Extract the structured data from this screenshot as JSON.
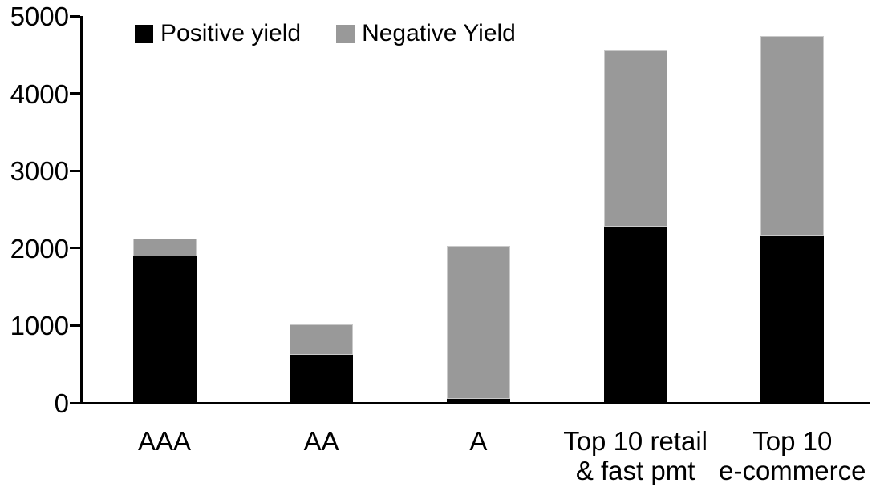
{
  "chart_data": {
    "type": "bar",
    "stacked": true,
    "title": "",
    "categories": [
      "AAA",
      "AA",
      "A",
      "Top 10 retail & fast pmt",
      "Top 10 e-commerce"
    ],
    "category_label_lines": [
      [
        "AAA"
      ],
      [
        "AA"
      ],
      [
        "A"
      ],
      [
        "Top 10 retail",
        "& fast pmt"
      ],
      [
        "Top 10",
        "e-commerce"
      ]
    ],
    "series": [
      {
        "name": "Positive yield",
        "color": "#000000",
        "values": [
          1890,
          620,
          50,
          2280,
          2150
        ]
      },
      {
        "name": "Negative Yield",
        "color": "#999999",
        "values": [
          230,
          390,
          1980,
          2270,
          2590
        ]
      }
    ],
    "totals": [
      2120,
      1010,
      2030,
      4550,
      4740
    ],
    "ylim": [
      0,
      5000
    ],
    "yticks": [
      0,
      1000,
      2000,
      3000,
      4000,
      5000
    ],
    "xlabel": "",
    "ylabel": "",
    "grid": false,
    "legend_position": "top"
  },
  "colors": {
    "axis": "#000000",
    "background": "#ffffff",
    "positive_series": "#000000",
    "negative_series": "#999999",
    "gray_segment_border": "#c9c9c9"
  }
}
